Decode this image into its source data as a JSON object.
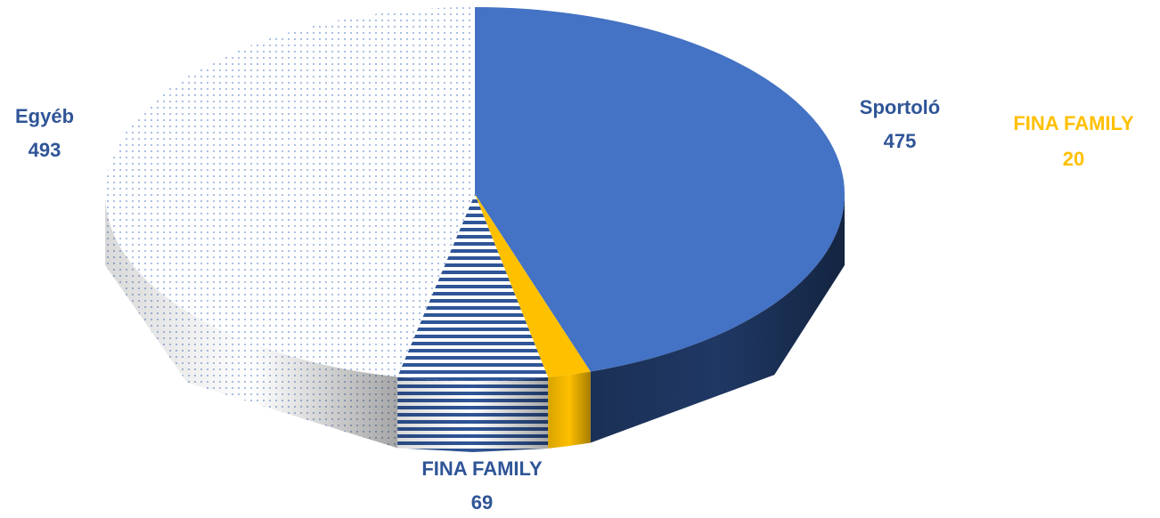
{
  "chart_data": {
    "type": "pie3d",
    "categories": [
      "Sportoló",
      "FINA FAMILY",
      "FINA FAMILY",
      "Egyéb"
    ],
    "values": [
      475,
      20,
      69,
      493
    ],
    "colors": [
      "#4472c4",
      "#ffc000",
      "#2f5597",
      "#e8edf6"
    ],
    "label_colors": [
      "#2f5597",
      "#ffc000",
      "#2f5597",
      "#2f5597"
    ]
  }
}
